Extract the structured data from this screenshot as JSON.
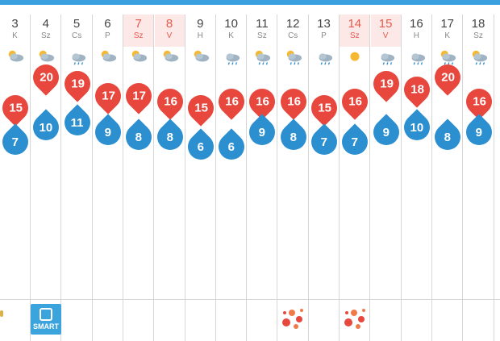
{
  "days": [
    {
      "day": "3",
      "wd": "K",
      "weekend": false,
      "icon": "sun-cloud-icon",
      "hi": "15",
      "lo": "7"
    },
    {
      "day": "4",
      "wd": "Sz",
      "weekend": false,
      "icon": "sun-cloud-icon",
      "hi": "20",
      "lo": "10"
    },
    {
      "day": "5",
      "wd": "Cs",
      "weekend": false,
      "icon": "rain-cloud-icon",
      "hi": "19",
      "lo": "11"
    },
    {
      "day": "6",
      "wd": "P",
      "weekend": false,
      "icon": "sun-cloud-icon",
      "hi": "17",
      "lo": "9"
    },
    {
      "day": "7",
      "wd": "Sz",
      "weekend": true,
      "icon": "sun-cloud-icon",
      "hi": "17",
      "lo": "8"
    },
    {
      "day": "8",
      "wd": "V",
      "weekend": true,
      "icon": "sun-cloud-icon",
      "hi": "16",
      "lo": "8"
    },
    {
      "day": "9",
      "wd": "H",
      "weekend": false,
      "icon": "sun-cloud-icon",
      "hi": "15",
      "lo": "6"
    },
    {
      "day": "10",
      "wd": "K",
      "weekend": false,
      "icon": "rain-cloud-icon",
      "hi": "16",
      "lo": "6"
    },
    {
      "day": "11",
      "wd": "Sz",
      "weekend": false,
      "icon": "sun-rain-cloud-icon",
      "hi": "16",
      "lo": "9"
    },
    {
      "day": "12",
      "wd": "Cs",
      "weekend": false,
      "icon": "sun-rain-cloud-icon",
      "hi": "16",
      "lo": "8"
    },
    {
      "day": "13",
      "wd": "P",
      "weekend": false,
      "icon": "rain-cloud-icon",
      "hi": "15",
      "lo": "7"
    },
    {
      "day": "14",
      "wd": "Sz",
      "weekend": true,
      "icon": "sun-icon",
      "hi": "16",
      "lo": "7"
    },
    {
      "day": "15",
      "wd": "V",
      "weekend": true,
      "icon": "rain-cloud-icon",
      "hi": "19",
      "lo": "9"
    },
    {
      "day": "16",
      "wd": "H",
      "weekend": false,
      "icon": "rain-cloud-icon",
      "hi": "18",
      "lo": "10"
    },
    {
      "day": "17",
      "wd": "K",
      "weekend": false,
      "icon": "sun-rain-cloud-icon",
      "hi": "20",
      "lo": "8"
    },
    {
      "day": "18",
      "wd": "Sz",
      "weekend": false,
      "icon": "sun-rain-cloud-icon",
      "hi": "16",
      "lo": "9"
    }
  ],
  "smart_badge": {
    "label": "SMART"
  },
  "colors": {
    "hi": "#e8473d",
    "lo": "#2c8fd0",
    "accent": "#3aa0e0",
    "weekend": "#e45a4a"
  }
}
